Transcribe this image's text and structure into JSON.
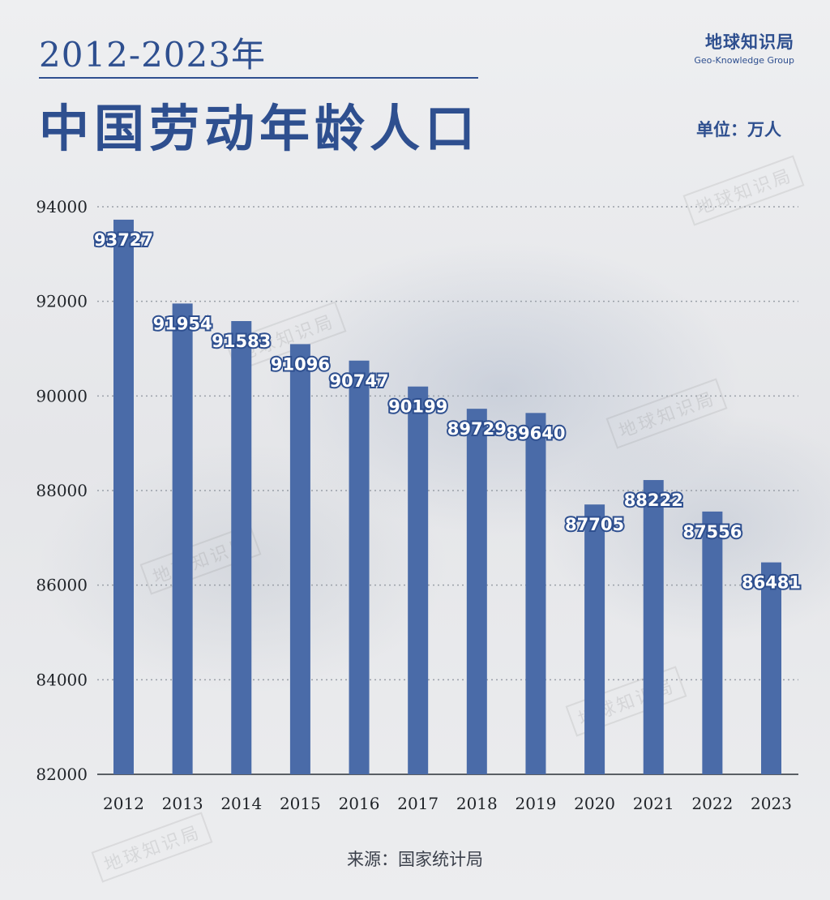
{
  "header": {
    "year_range": "2012-2023年",
    "title": "中国劳动年龄人口",
    "brand_name": "地球知识局",
    "brand_en": "Geo-Knowledge Group",
    "unit": "单位：万人"
  },
  "footer": {
    "source": "来源：国家统计局"
  },
  "watermark_text": "地球知识局",
  "colors": {
    "bar": "#4a6ba8",
    "accent": "#2e4f8f",
    "grid": "#9aa0a8"
  },
  "chart_data": {
    "type": "bar",
    "categories": [
      "2012",
      "2013",
      "2014",
      "2015",
      "2016",
      "2017",
      "2018",
      "2019",
      "2020",
      "2021",
      "2022",
      "2023"
    ],
    "values": [
      93727,
      91954,
      91583,
      91096,
      90747,
      90199,
      89729,
      89640,
      87705,
      88222,
      87556,
      86481
    ],
    "yticks": [
      82000,
      84000,
      86000,
      88000,
      90000,
      92000,
      94000
    ],
    "ylim": [
      82000,
      94000
    ],
    "grid": true,
    "grid_style": "dotted"
  }
}
